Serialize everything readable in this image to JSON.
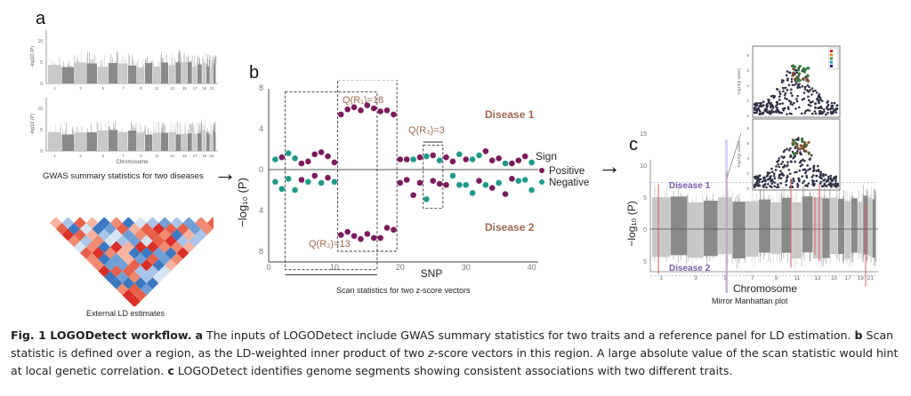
{
  "panels": {
    "a": {
      "letter": "a",
      "manhattan_top": {
        "ylabel": "-log10 (P)",
        "yticks": [
          "0",
          "5",
          "10"
        ],
        "xticks": [
          "1",
          "3",
          "5",
          "7",
          "9",
          "11",
          "13",
          "15",
          "17",
          "19",
          "21"
        ]
      },
      "manhattan_bottom": {
        "ylabel": "-log10 (P)",
        "yticks": [
          "0",
          "5",
          "10"
        ],
        "xticks": [
          "1",
          "3",
          "5",
          "7",
          "9",
          "11",
          "13",
          "15",
          "17",
          "19",
          "21"
        ],
        "xlabel": "Chromosome"
      },
      "gwas_caption": "GWAS summary statistics for two diseases",
      "ld_caption": "External LD estimates"
    },
    "b": {
      "letter": "b",
      "caption": "Scan statistics for two z-score vectors",
      "disease1_label": "Disease 1",
      "disease2_label": "Disease 2",
      "q_labels": {
        "r1": "Q(R₁)=18",
        "r2": "Q(R₂)=13",
        "r3": "Q(R₃)=3"
      },
      "legend": {
        "title": "Sign",
        "items": [
          {
            "label": "Positive",
            "color": "#7b1a5e"
          },
          {
            "label": "Negative",
            "color": "#1f9a8a"
          }
        ]
      }
    },
    "c": {
      "letter": "c",
      "caption": "Mirror Manhattan plot",
      "disease1_label": "Disease 1",
      "disease2_label": "Disease 2",
      "xlabel": "Chromosome",
      "ylabel": "-log10 (P)",
      "yticks_top": [
        "15",
        "10",
        "5",
        "0"
      ],
      "yticks_bottom": [
        "5"
      ],
      "xticks": [
        "1",
        "3",
        "5",
        "7",
        "9",
        "11",
        "13",
        "15",
        "17",
        "19",
        "21"
      ]
    }
  },
  "chart_data": [
    {
      "type": "scatter",
      "title": "Scan statistics for two z-score vectors",
      "xlabel": "SNP",
      "ylabel": "-log10 (P)",
      "xlim": [
        0,
        41
      ],
      "xticks": [
        0,
        10,
        20,
        30,
        40
      ],
      "yticks_top": [
        0,
        4,
        8
      ],
      "yticks_bottom": [
        4,
        8
      ],
      "ylim": [
        -10,
        10
      ],
      "note": "Mirror plot: upper half Disease 1 (positive y), lower half Disease 2 (plotted downward)",
      "series": [
        {
          "name": "Disease 1",
          "x": [
            1,
            2,
            3,
            4,
            5,
            6,
            7,
            8,
            9,
            10,
            11,
            12,
            13,
            14,
            15,
            16,
            17,
            18,
            19,
            20,
            21,
            22,
            23,
            24,
            25,
            26,
            27,
            28,
            29,
            30,
            31,
            32,
            33,
            34,
            35,
            36,
            37,
            38,
            39,
            40
          ],
          "y": [
            1.0,
            1.2,
            1.6,
            1.1,
            0.6,
            0.8,
            1.5,
            1.7,
            1.3,
            0.7,
            5.4,
            5.9,
            6.1,
            5.8,
            6.3,
            6.0,
            5.7,
            5.8,
            5.4,
            1.0,
            1.0,
            1.0,
            1.2,
            1.3,
            1.4,
            0.9,
            1.2,
            0.8,
            1.5,
            1.0,
            1.0,
            1.4,
            1.8,
            0.9,
            1.1,
            0.6,
            0.6,
            0.9,
            1.3,
            0.7
          ],
          "sign": [
            "N",
            "P",
            "N",
            "N",
            "P",
            "P",
            "P",
            "P",
            "P",
            "P",
            "P",
            "P",
            "P",
            "P",
            "P",
            "P",
            "P",
            "P",
            "P",
            "P",
            "P",
            "N",
            "P",
            "N",
            "P",
            "N",
            "P",
            "P",
            "N",
            "P",
            "N",
            "N",
            "P",
            "P",
            "P",
            "N",
            "P",
            "P",
            "P",
            "N"
          ]
        },
        {
          "name": "Disease 2",
          "x": [
            1,
            2,
            3,
            4,
            5,
            6,
            7,
            8,
            9,
            10,
            11,
            12,
            13,
            14,
            15,
            16,
            17,
            18,
            19,
            20,
            21,
            22,
            23,
            24,
            25,
            26,
            27,
            28,
            29,
            30,
            31,
            32,
            33,
            34,
            35,
            36,
            37,
            38,
            39,
            40
          ],
          "y": [
            1.2,
            1.9,
            0.9,
            2.0,
            1.0,
            1.2,
            0.6,
            1.3,
            0.8,
            1.2,
            6.4,
            6.1,
            6.5,
            6.8,
            6.3,
            6.7,
            6.7,
            5.7,
            5.9,
            1.3,
            1.0,
            2.5,
            1.3,
            2.9,
            1.1,
            1.4,
            1.5,
            0.6,
            1.5,
            1.5,
            2.3,
            1.1,
            1.5,
            1.8,
            1.3,
            2.4,
            0.9,
            1.1,
            1.0,
            2.0
          ],
          "sign": [
            "N",
            "N",
            "N",
            "N",
            "P",
            "N",
            "P",
            "N",
            "P",
            "N",
            "P",
            "P",
            "P",
            "P",
            "P",
            "P",
            "P",
            "P",
            "P",
            "P",
            "P",
            "P",
            "P",
            "N",
            "P",
            "P",
            "P",
            "N",
            "N",
            "N",
            "N",
            "P",
            "N",
            "P",
            "N",
            "P",
            "P",
            "N",
            "N",
            "N"
          ]
        }
      ],
      "regions": [
        {
          "name": "R1",
          "label": "Q(R₁)=18",
          "x_range": [
            10.5,
            19.5
          ],
          "disease": "Disease 1"
        },
        {
          "name": "R2",
          "label": "Q(R₂)=13",
          "x_range": [
            2.5,
            16.5
          ],
          "disease": "Disease 2"
        },
        {
          "name": "R3",
          "label": "Q(R₃)=3",
          "x_range": [
            23.5,
            26.5
          ],
          "disease": "both"
        }
      ],
      "legend": {
        "title": "Sign",
        "entries": [
          "Positive",
          "Negative"
        ],
        "placement": "right"
      },
      "annotations": [
        "Disease 1",
        "Disease 2"
      ]
    }
  ],
  "figure_caption": {
    "label": "Fig. 1 LOGODetect workflow.",
    "a_letter": "a",
    "a_text": " The inputs of LOGODetect include GWAS summary statistics for two traits and a reference panel for LD estimation. ",
    "b_letter": "b",
    "b_text_1": " Scan statistic is defined over a region, as the LD-weighted inner product of two ",
    "b_italic": "z",
    "b_text_2": "-score vectors in this region. A large absolute value of the scan statistic would hint at local genetic correlation. ",
    "c_letter": "c",
    "c_text": " LOGODetect identifies genome segments showing consistent associations with two different traits."
  },
  "colors": {
    "positive": "#7b1a5e",
    "negative": "#1f9a8a",
    "annot_brown": "#a0674b",
    "disease_purple": "#7b5bb5",
    "manhattan_light": "#c8c8c8",
    "manhattan_dark": "#8a8a8a",
    "highlight_red": "#e25a5a"
  }
}
